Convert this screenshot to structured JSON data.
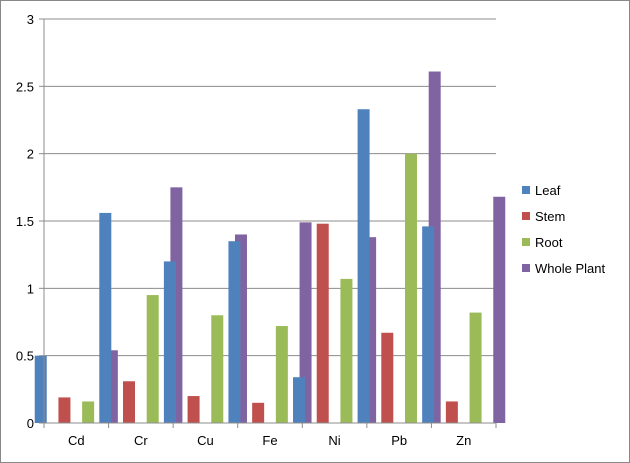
{
  "chart_data": {
    "type": "bar",
    "categories": [
      "Cd",
      "Cr",
      "Cu",
      "Fe",
      "Ni",
      "Pb",
      "Zn"
    ],
    "series": [
      {
        "name": "Leaf",
        "color": "#4F81BD",
        "values": [
          0.5,
          1.56,
          1.2,
          1.35,
          0.34,
          2.33,
          1.46
        ]
      },
      {
        "name": "Stem",
        "color": "#C0504D",
        "values": [
          0.19,
          0.31,
          0.2,
          0.15,
          1.48,
          0.67,
          0.16
        ]
      },
      {
        "name": "Root",
        "color": "#9BBB59",
        "values": [
          0.16,
          0.95,
          0.8,
          0.72,
          1.07,
          2.0,
          0.82
        ]
      },
      {
        "name": "Whole Plant",
        "color": "#8064A2",
        "values": [
          0.54,
          1.75,
          1.4,
          1.49,
          1.38,
          2.61,
          1.68
        ]
      }
    ],
    "ylim": [
      0,
      3
    ],
    "yticks": [
      "0",
      "0.5",
      "1",
      "1.5",
      "2",
      "2.5",
      "3"
    ],
    "grid": true,
    "legend_position": "right"
  }
}
